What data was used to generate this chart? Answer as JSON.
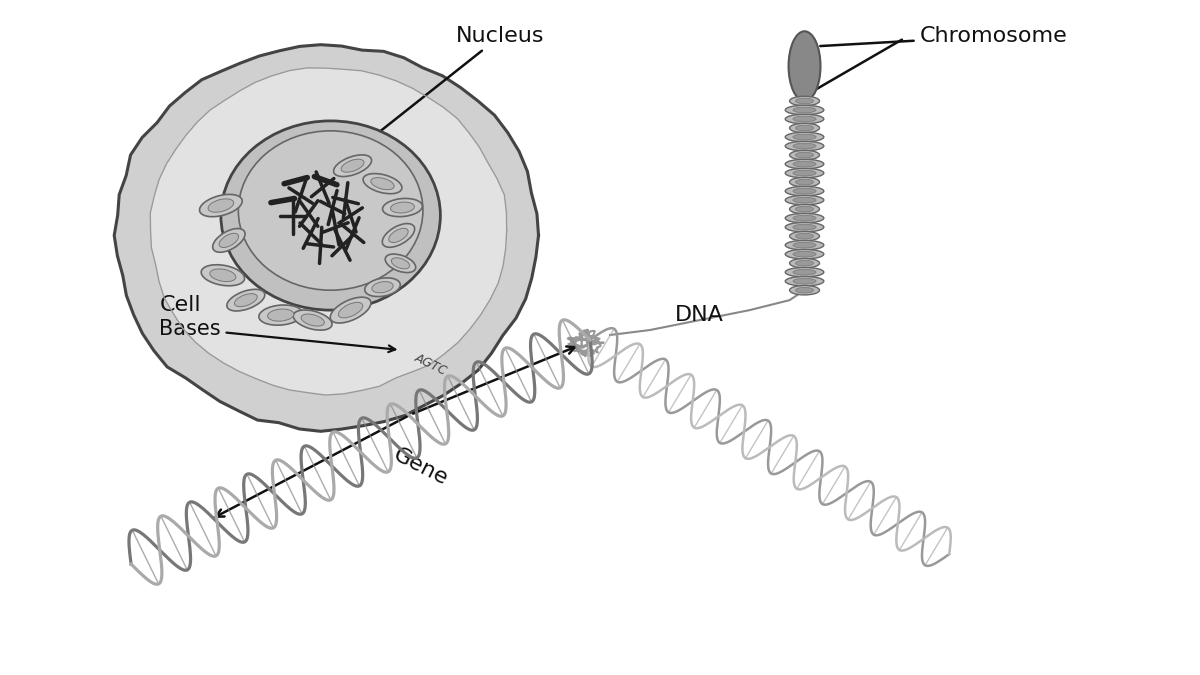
{
  "background_color": "#ffffff",
  "labels": {
    "nucleus": "Nucleus",
    "chromosome": "Chromosome",
    "cell": "Cell",
    "dna": "DNA",
    "bases": "Bases",
    "gene": "Gene",
    "nucleotides": "AGTC"
  },
  "label_fontsize": 15,
  "colors": {
    "cell_fill": "#d4d4d4",
    "cell_edge": "#333333",
    "nucleus_fill": "#b0b0b0",
    "nucleus_edge": "#333333",
    "dna_color": "#888888",
    "line_color": "#111111",
    "text_color": "#111111"
  }
}
